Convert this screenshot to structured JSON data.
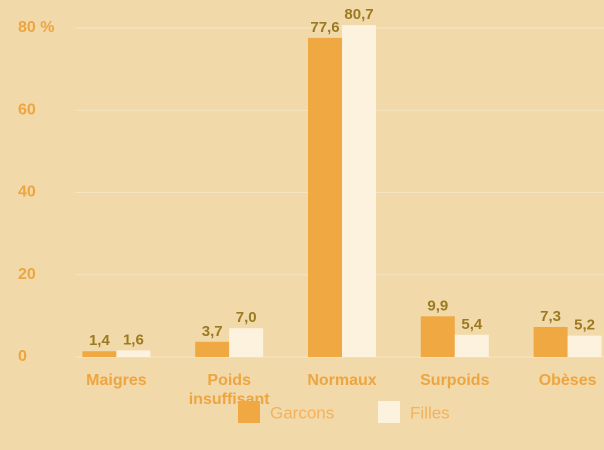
{
  "chart_data": {
    "type": "bar",
    "categories": [
      "Maigres",
      "Poids insuffisant",
      "Normaux",
      "Surpoids",
      "Obèses"
    ],
    "series": [
      {
        "name": "Garcons",
        "color": "#f0a843",
        "values": [
          1.4,
          3.7,
          77.6,
          9.9,
          7.3
        ],
        "value_labels": [
          "1,4",
          "3,7",
          "77,6",
          "9,9",
          "7,3"
        ]
      },
      {
        "name": "Filles",
        "color": "#fdf2de",
        "values": [
          1.6,
          7.0,
          80.7,
          5.4,
          5.2
        ],
        "value_labels": [
          "1,6",
          "7,0",
          "80,7",
          "5,4",
          "5,2"
        ]
      }
    ],
    "ylim": [
      0,
      80
    ],
    "yticks": [
      0,
      20,
      40,
      60,
      {
        "value": 80,
        "label": "80 %"
      }
    ],
    "grid": true
  }
}
